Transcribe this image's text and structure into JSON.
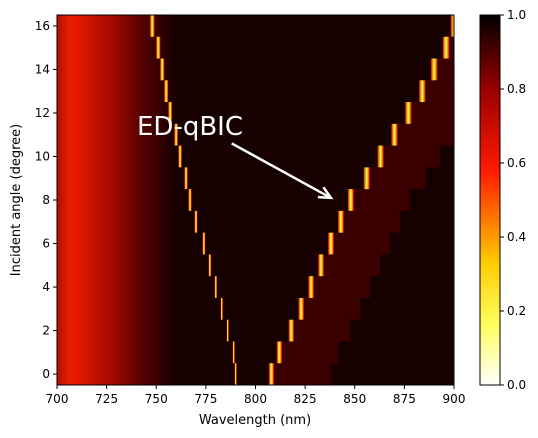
{
  "chart_data": {
    "type": "heatmap",
    "xlabel": "Wavelength (nm)",
    "ylabel": "Incident angle (degree)",
    "xlim": [
      700,
      900
    ],
    "ylim": [
      -0.5,
      16.5
    ],
    "x_ticks": [
      "700",
      "725",
      "750",
      "775",
      "800",
      "825",
      "850",
      "875",
      "900"
    ],
    "y_ticks": [
      "0",
      "2",
      "4",
      "6",
      "8",
      "10",
      "12",
      "14",
      "16"
    ],
    "angles": [
      0,
      1,
      2,
      3,
      4,
      5,
      6,
      7,
      8,
      9,
      10,
      11,
      12,
      13,
      14,
      15,
      16
    ],
    "left_mode_wavelength": [
      790,
      789,
      786,
      783,
      780,
      777,
      774,
      770,
      767,
      765,
      762,
      760,
      757,
      755,
      753,
      751,
      748
    ],
    "right_mode_wavelength": [
      808,
      812,
      818,
      823,
      828,
      833,
      838,
      843,
      848,
      856,
      863,
      870,
      877,
      884,
      890,
      896,
      900
    ],
    "colormap": "hot_r",
    "colorbar": {
      "range": [
        0.0,
        1.0
      ],
      "ticks": [
        "0.0",
        "0.2",
        "0.4",
        "0.6",
        "0.8",
        "1.0"
      ]
    },
    "annotation": {
      "text": "ED-qBIC",
      "arrow_tail": [
        788,
        10.6
      ],
      "arrow_head": [
        838,
        8.1
      ]
    }
  }
}
